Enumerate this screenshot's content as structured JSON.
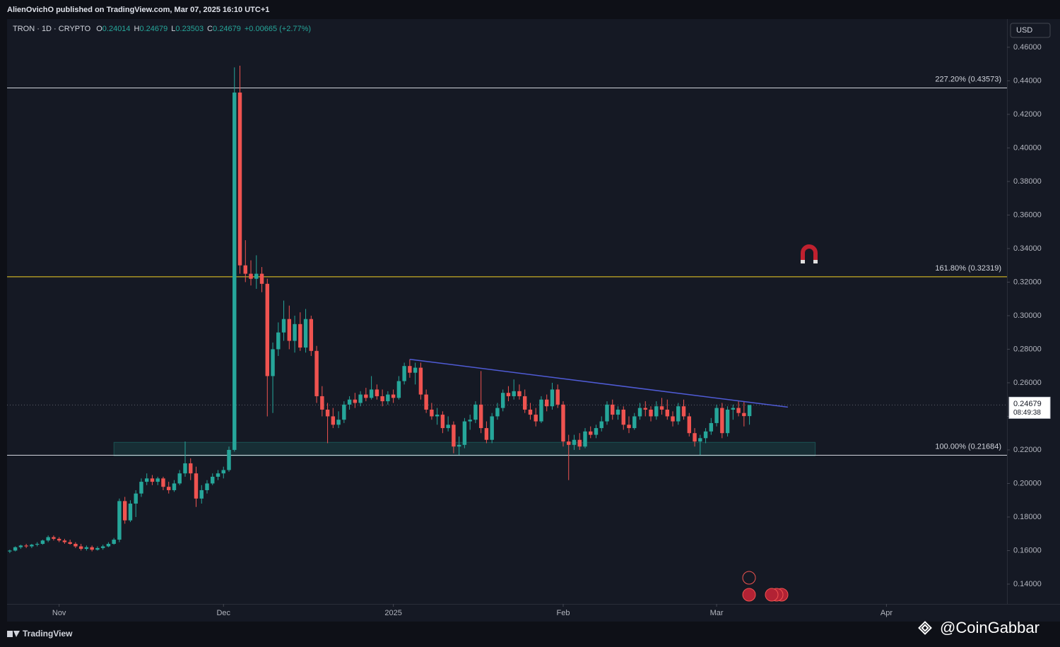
{
  "chart_data": {
    "type": "candlestick",
    "published": "AlienOvichO published on TradingView.com, Mar 07, 2025 16:10 UTC+1",
    "symbol": "TRON · 1D · CRYPTO",
    "ohlc_header": [
      {
        "key": "O",
        "value": 0.24014
      },
      {
        "key": "H",
        "value": 0.24679
      },
      {
        "key": "L",
        "value": 0.23503
      },
      {
        "key": "C",
        "value": 0.24679
      }
    ],
    "change": "+0.00665 (+2.77%)",
    "currency": "USD",
    "countdown": "08:49:38",
    "up_color": "#26a69a",
    "down_color": "#ef5350",
    "ohlc": [
      [
        0.1595,
        0.1605,
        0.1585,
        0.16
      ],
      [
        0.16,
        0.1625,
        0.1595,
        0.162
      ],
      [
        0.162,
        0.1635,
        0.161,
        0.163
      ],
      [
        0.163,
        0.164,
        0.1615,
        0.1625
      ],
      [
        0.1625,
        0.164,
        0.1615,
        0.1635
      ],
      [
        0.1635,
        0.165,
        0.1625,
        0.164
      ],
      [
        0.164,
        0.1665,
        0.1635,
        0.166
      ],
      [
        0.166,
        0.169,
        0.165,
        0.168
      ],
      [
        0.168,
        0.169,
        0.166,
        0.167
      ],
      [
        0.167,
        0.168,
        0.165,
        0.166
      ],
      [
        0.166,
        0.167,
        0.164,
        0.165
      ],
      [
        0.165,
        0.1665,
        0.1635,
        0.164
      ],
      [
        0.164,
        0.165,
        0.1615,
        0.1625
      ],
      [
        0.1625,
        0.164,
        0.16,
        0.161
      ],
      [
        0.161,
        0.163,
        0.16,
        0.162
      ],
      [
        0.162,
        0.163,
        0.1595,
        0.1605
      ],
      [
        0.1605,
        0.1625,
        0.16,
        0.1615
      ],
      [
        0.1615,
        0.1635,
        0.1605,
        0.1625
      ],
      [
        0.1625,
        0.165,
        0.162,
        0.164
      ],
      [
        0.164,
        0.1675,
        0.1635,
        0.1665
      ],
      [
        0.1665,
        0.191,
        0.165,
        0.1895
      ],
      [
        0.1895,
        0.192,
        0.176,
        0.178
      ],
      [
        0.178,
        0.19,
        0.177,
        0.188
      ],
      [
        0.188,
        0.196,
        0.18,
        0.194
      ],
      [
        0.194,
        0.203,
        0.192,
        0.201
      ],
      [
        0.201,
        0.206,
        0.199,
        0.203
      ],
      [
        0.203,
        0.205,
        0.199,
        0.201
      ],
      [
        0.201,
        0.204,
        0.199,
        0.203
      ],
      [
        0.203,
        0.204,
        0.196,
        0.198
      ],
      [
        0.198,
        0.201,
        0.194,
        0.196
      ],
      [
        0.196,
        0.202,
        0.195,
        0.2
      ],
      [
        0.2,
        0.208,
        0.199,
        0.206
      ],
      [
        0.206,
        0.225,
        0.204,
        0.212
      ],
      [
        0.212,
        0.215,
        0.202,
        0.206
      ],
      [
        0.206,
        0.21,
        0.186,
        0.191
      ],
      [
        0.191,
        0.199,
        0.188,
        0.196
      ],
      [
        0.196,
        0.202,
        0.194,
        0.2
      ],
      [
        0.2,
        0.206,
        0.199,
        0.204
      ],
      [
        0.204,
        0.208,
        0.202,
        0.206
      ],
      [
        0.206,
        0.21,
        0.203,
        0.208
      ],
      [
        0.208,
        0.222,
        0.207,
        0.22
      ],
      [
        0.22,
        0.448,
        0.219,
        0.433
      ],
      [
        0.433,
        0.449,
        0.325,
        0.33
      ],
      [
        0.33,
        0.345,
        0.32,
        0.325
      ],
      [
        0.325,
        0.333,
        0.318,
        0.322
      ],
      [
        0.322,
        0.336,
        0.316,
        0.325
      ],
      [
        0.325,
        0.329,
        0.314,
        0.319
      ],
      [
        0.319,
        0.322,
        0.24,
        0.264
      ],
      [
        0.264,
        0.284,
        0.242,
        0.28
      ],
      [
        0.28,
        0.296,
        0.276,
        0.29
      ],
      [
        0.29,
        0.309,
        0.285,
        0.298
      ],
      [
        0.298,
        0.306,
        0.28,
        0.285
      ],
      [
        0.285,
        0.3,
        0.278,
        0.295
      ],
      [
        0.295,
        0.302,
        0.279,
        0.281
      ],
      [
        0.281,
        0.304,
        0.278,
        0.298
      ],
      [
        0.298,
        0.3,
        0.276,
        0.279
      ],
      [
        0.279,
        0.282,
        0.248,
        0.252
      ],
      [
        0.252,
        0.258,
        0.24,
        0.244
      ],
      [
        0.244,
        0.248,
        0.224,
        0.24
      ],
      [
        0.24,
        0.245,
        0.233,
        0.235
      ],
      [
        0.235,
        0.243,
        0.233,
        0.238
      ],
      [
        0.238,
        0.249,
        0.236,
        0.247
      ],
      [
        0.247,
        0.252,
        0.244,
        0.25
      ],
      [
        0.25,
        0.254,
        0.245,
        0.248
      ],
      [
        0.248,
        0.255,
        0.246,
        0.253
      ],
      [
        0.253,
        0.257,
        0.249,
        0.251
      ],
      [
        0.251,
        0.264,
        0.25,
        0.256
      ],
      [
        0.256,
        0.259,
        0.25,
        0.252
      ],
      [
        0.252,
        0.256,
        0.246,
        0.249
      ],
      [
        0.249,
        0.255,
        0.247,
        0.253
      ],
      [
        0.253,
        0.256,
        0.248,
        0.251
      ],
      [
        0.251,
        0.264,
        0.25,
        0.261
      ],
      [
        0.261,
        0.272,
        0.259,
        0.27
      ],
      [
        0.27,
        0.274,
        0.263,
        0.266
      ],
      [
        0.266,
        0.272,
        0.259,
        0.269
      ],
      [
        0.269,
        0.272,
        0.25,
        0.253
      ],
      [
        0.253,
        0.256,
        0.242,
        0.244
      ],
      [
        0.244,
        0.248,
        0.238,
        0.24
      ],
      [
        0.24,
        0.245,
        0.235,
        0.241
      ],
      [
        0.241,
        0.243,
        0.23,
        0.233
      ],
      [
        0.233,
        0.24,
        0.231,
        0.235
      ],
      [
        0.235,
        0.237,
        0.218,
        0.222
      ],
      [
        0.222,
        0.228,
        0.217,
        0.223
      ],
      [
        0.223,
        0.239,
        0.221,
        0.237
      ],
      [
        0.237,
        0.241,
        0.232,
        0.238
      ],
      [
        0.238,
        0.249,
        0.236,
        0.247
      ],
      [
        0.247,
        0.267,
        0.23,
        0.233
      ],
      [
        0.233,
        0.237,
        0.224,
        0.226
      ],
      [
        0.226,
        0.242,
        0.224,
        0.24
      ],
      [
        0.24,
        0.248,
        0.238,
        0.245
      ],
      [
        0.245,
        0.256,
        0.243,
        0.254
      ],
      [
        0.254,
        0.258,
        0.249,
        0.252
      ],
      [
        0.252,
        0.262,
        0.25,
        0.255
      ],
      [
        0.255,
        0.259,
        0.25,
        0.252
      ],
      [
        0.252,
        0.256,
        0.242,
        0.244
      ],
      [
        0.244,
        0.248,
        0.238,
        0.241
      ],
      [
        0.241,
        0.245,
        0.234,
        0.237
      ],
      [
        0.237,
        0.252,
        0.236,
        0.25
      ],
      [
        0.25,
        0.253,
        0.243,
        0.246
      ],
      [
        0.246,
        0.26,
        0.244,
        0.256
      ],
      [
        0.256,
        0.259,
        0.245,
        0.247
      ],
      [
        0.247,
        0.249,
        0.222,
        0.225
      ],
      [
        0.225,
        0.229,
        0.202,
        0.223
      ],
      [
        0.223,
        0.229,
        0.22,
        0.226
      ],
      [
        0.226,
        0.23,
        0.22,
        0.222
      ],
      [
        0.222,
        0.233,
        0.221,
        0.231
      ],
      [
        0.231,
        0.234,
        0.227,
        0.229
      ],
      [
        0.229,
        0.235,
        0.227,
        0.233
      ],
      [
        0.233,
        0.24,
        0.231,
        0.237
      ],
      [
        0.237,
        0.249,
        0.235,
        0.247
      ],
      [
        0.247,
        0.25,
        0.238,
        0.241
      ],
      [
        0.241,
        0.246,
        0.238,
        0.244
      ],
      [
        0.244,
        0.246,
        0.232,
        0.235
      ],
      [
        0.235,
        0.24,
        0.23,
        0.233
      ],
      [
        0.233,
        0.242,
        0.232,
        0.24
      ],
      [
        0.24,
        0.248,
        0.238,
        0.245
      ],
      [
        0.245,
        0.249,
        0.24,
        0.244
      ],
      [
        0.244,
        0.246,
        0.237,
        0.24
      ],
      [
        0.24,
        0.249,
        0.238,
        0.246
      ],
      [
        0.246,
        0.251,
        0.241,
        0.244
      ],
      [
        0.244,
        0.25,
        0.238,
        0.24
      ],
      [
        0.24,
        0.243,
        0.234,
        0.237
      ],
      [
        0.237,
        0.248,
        0.235,
        0.246
      ],
      [
        0.246,
        0.25,
        0.238,
        0.24
      ],
      [
        0.24,
        0.242,
        0.228,
        0.23
      ],
      [
        0.23,
        0.233,
        0.222,
        0.225
      ],
      [
        0.225,
        0.229,
        0.217,
        0.227
      ],
      [
        0.227,
        0.233,
        0.224,
        0.231
      ],
      [
        0.231,
        0.239,
        0.229,
        0.236
      ],
      [
        0.236,
        0.247,
        0.234,
        0.245
      ],
      [
        0.245,
        0.248,
        0.227,
        0.23
      ],
      [
        0.23,
        0.246,
        0.228,
        0.244
      ],
      [
        0.244,
        0.247,
        0.238,
        0.245
      ],
      [
        0.245,
        0.249,
        0.24,
        0.242
      ],
      [
        0.242,
        0.249,
        0.234,
        0.24014
      ],
      [
        0.24014,
        0.24679,
        0.23503,
        0.24679
      ]
    ],
    "xlim": [
      -0.5,
      182
    ],
    "xticks": [
      {
        "value": 9,
        "label": "Nov"
      },
      {
        "value": 39,
        "label": "Dec"
      },
      {
        "value": 70,
        "label": "2025"
      },
      {
        "value": 101,
        "label": "Feb"
      },
      {
        "value": 129,
        "label": "Mar"
      },
      {
        "value": 160,
        "label": "Apr"
      }
    ],
    "ylim": [
      0.1282,
      0.4768
    ],
    "yticks": [
      {
        "value": 0.14,
        "label": "0.14000"
      },
      {
        "value": 0.16,
        "label": "0.16000"
      },
      {
        "value": 0.18,
        "label": "0.18000"
      },
      {
        "value": 0.2,
        "label": "0.20000"
      },
      {
        "value": 0.22,
        "label": "0.22000"
      },
      {
        "value": 0.24,
        "label": "0.24000"
      },
      {
        "value": 0.26,
        "label": "0.26000"
      },
      {
        "value": 0.28,
        "label": "0.28000"
      },
      {
        "value": 0.3,
        "label": "0.30000"
      },
      {
        "value": 0.32,
        "label": "0.32000"
      },
      {
        "value": 0.34,
        "label": "0.34000"
      },
      {
        "value": 0.36,
        "label": "0.36000"
      },
      {
        "value": 0.38,
        "label": "0.38000"
      },
      {
        "value": 0.4,
        "label": "0.40000"
      },
      {
        "value": 0.42,
        "label": "0.42000"
      },
      {
        "value": 0.44,
        "label": "0.44000"
      },
      {
        "value": 0.46,
        "label": "0.46000"
      }
    ],
    "fib_levels": [
      {
        "label": "227.20% (0.43573)",
        "value": 0.43573,
        "color": "#d1d4dc"
      },
      {
        "label": "161.80% (0.32319)",
        "value": 0.32319,
        "color": "#f2d024"
      },
      {
        "label": "100.00% (0.21684)",
        "value": 0.21684,
        "color": "#d1d4dc"
      }
    ],
    "trendline": {
      "x": [
        73,
        142
      ],
      "y": [
        0.274,
        0.2455
      ],
      "color": "#4f5bd5"
    },
    "zone": {
      "x": [
        19,
        147
      ],
      "y": [
        0.2165,
        0.2245
      ],
      "color": "#26a69a"
    },
    "footer": {
      "brand": "TradingView",
      "watermark": "@CoinGabbar"
    }
  }
}
